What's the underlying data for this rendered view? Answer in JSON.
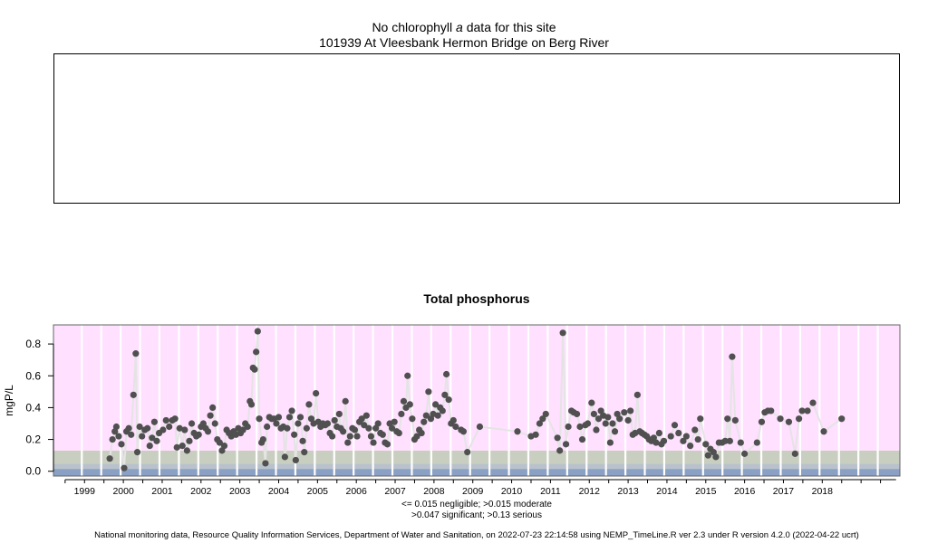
{
  "header": {
    "title_pre": "No chlorophyll ",
    "title_italic": "a",
    "title_post": " data for this site",
    "site": "101939 At Vleesbank Hermon Bridge on Berg River"
  },
  "legend": {
    "line1": "<= 0.015 negligible; >0.015 moderate",
    "line2": ">0.047 significant; >0.13 serious"
  },
  "footer": "National monitoring data, Resource Quality Information Services, Department of Water and Sanitation, on 2022-07-23 22:14:58 using NEMP_TimeLine.R ver 2.3 under R version 4.2.0 (2022-04-22 ucrt)",
  "colors": {
    "serious": "#ffe0ff",
    "significant": "#c9cfc0",
    "moderate": "#b9c2cc",
    "negligible": "#8aa0c4",
    "points": "#505050",
    "line": "#e4e4e4"
  },
  "chart_data": {
    "type": "scatter",
    "title": "Total phosphorus",
    "xlabel": "",
    "ylabel": "mgP/L",
    "xlim": [
      1998.2,
      2020.0
    ],
    "ylim": [
      -0.03,
      0.92
    ],
    "yticks": [
      0.0,
      0.2,
      0.4,
      0.6,
      0.8
    ],
    "ytick_labels": [
      "0.0",
      "0.2",
      "0.4",
      "0.6",
      "0.8"
    ],
    "xticks": [
      1999,
      2000,
      2001,
      2002,
      2003,
      2004,
      2005,
      2006,
      2007,
      2008,
      2009,
      2010,
      2011,
      2012,
      2013,
      2014,
      2015,
      2016,
      2017,
      2018
    ],
    "xtick_labels": [
      "1999",
      "2000",
      "2001",
      "2002",
      "2003",
      "2004",
      "2005",
      "2006",
      "2007",
      "2008",
      "2009",
      "2010",
      "2011",
      "2012",
      "2013",
      "2014",
      "2015",
      "2016",
      "2017",
      "2018"
    ],
    "bands": [
      {
        "name": "negligible",
        "from": -0.03,
        "to": 0.015
      },
      {
        "name": "moderate",
        "from": 0.015,
        "to": 0.047
      },
      {
        "name": "significant",
        "from": 0.047,
        "to": 0.13
      },
      {
        "name": "serious",
        "from": 0.13,
        "to": 0.92
      }
    ],
    "points": [
      [
        1999.65,
        0.08
      ],
      [
        1999.72,
        0.2
      ],
      [
        1999.78,
        0.25
      ],
      [
        1999.82,
        0.28
      ],
      [
        1999.88,
        0.22
      ],
      [
        1999.95,
        0.17
      ],
      [
        2000.02,
        0.02
      ],
      [
        2000.08,
        0.25
      ],
      [
        2000.14,
        0.27
      ],
      [
        2000.2,
        0.23
      ],
      [
        2000.26,
        0.48
      ],
      [
        2000.32,
        0.74
      ],
      [
        2000.36,
        0.12
      ],
      [
        2000.42,
        0.28
      ],
      [
        2000.48,
        0.22
      ],
      [
        2000.55,
        0.26
      ],
      [
        2000.62,
        0.27
      ],
      [
        2000.68,
        0.16
      ],
      [
        2000.74,
        0.21
      ],
      [
        2000.8,
        0.31
      ],
      [
        2000.86,
        0.19
      ],
      [
        2000.92,
        0.24
      ],
      [
        2001.02,
        0.26
      ],
      [
        2001.1,
        0.32
      ],
      [
        2001.18,
        0.28
      ],
      [
        2001.26,
        0.32
      ],
      [
        2001.33,
        0.33
      ],
      [
        2001.38,
        0.15
      ],
      [
        2001.45,
        0.27
      ],
      [
        2001.52,
        0.16
      ],
      [
        2001.58,
        0.26
      ],
      [
        2001.64,
        0.13
      ],
      [
        2001.7,
        0.19
      ],
      [
        2001.76,
        0.3
      ],
      [
        2001.82,
        0.24
      ],
      [
        2001.88,
        0.22
      ],
      [
        2001.94,
        0.23
      ],
      [
        2002.0,
        0.28
      ],
      [
        2002.06,
        0.3
      ],
      [
        2002.12,
        0.27
      ],
      [
        2002.18,
        0.25
      ],
      [
        2002.24,
        0.35
      ],
      [
        2002.3,
        0.4
      ],
      [
        2002.36,
        0.3
      ],
      [
        2002.42,
        0.2
      ],
      [
        2002.48,
        0.18
      ],
      [
        2002.54,
        0.13
      ],
      [
        2002.6,
        0.16
      ],
      [
        2002.66,
        0.26
      ],
      [
        2002.72,
        0.24
      ],
      [
        2002.78,
        0.22
      ],
      [
        2002.84,
        0.25
      ],
      [
        2002.9,
        0.23
      ],
      [
        2002.96,
        0.27
      ],
      [
        2003.02,
        0.24
      ],
      [
        2003.08,
        0.26
      ],
      [
        2003.14,
        0.3
      ],
      [
        2003.2,
        0.28
      ],
      [
        2003.26,
        0.44
      ],
      [
        2003.3,
        0.42
      ],
      [
        2003.34,
        0.65
      ],
      [
        2003.38,
        0.64
      ],
      [
        2003.42,
        0.75
      ],
      [
        2003.46,
        0.88
      ],
      [
        2003.5,
        0.33
      ],
      [
        2003.56,
        0.18
      ],
      [
        2003.6,
        0.2
      ],
      [
        2003.66,
        0.05
      ],
      [
        2003.7,
        0.28
      ],
      [
        2003.76,
        0.34
      ],
      [
        2003.82,
        0.33
      ],
      [
        2003.88,
        0.33
      ],
      [
        2003.94,
        0.3
      ],
      [
        2004.0,
        0.34
      ],
      [
        2004.06,
        0.27
      ],
      [
        2004.12,
        0.28
      ],
      [
        2004.16,
        0.09
      ],
      [
        2004.22,
        0.27
      ],
      [
        2004.28,
        0.34
      ],
      [
        2004.34,
        0.38
      ],
      [
        2004.4,
        0.23
      ],
      [
        2004.44,
        0.07
      ],
      [
        2004.5,
        0.3
      ],
      [
        2004.56,
        0.34
      ],
      [
        2004.62,
        0.19
      ],
      [
        2004.66,
        0.12
      ],
      [
        2004.72,
        0.27
      ],
      [
        2004.78,
        0.42
      ],
      [
        2004.84,
        0.33
      ],
      [
        2004.9,
        0.3
      ],
      [
        2004.96,
        0.49
      ],
      [
        2005.02,
        0.31
      ],
      [
        2005.08,
        0.28
      ],
      [
        2005.14,
        0.3
      ],
      [
        2005.2,
        0.29
      ],
      [
        2005.26,
        0.3
      ],
      [
        2005.32,
        0.24
      ],
      [
        2005.38,
        0.22
      ],
      [
        2005.44,
        0.32
      ],
      [
        2005.5,
        0.28
      ],
      [
        2005.56,
        0.36
      ],
      [
        2005.6,
        0.27
      ],
      [
        2005.66,
        0.25
      ],
      [
        2005.72,
        0.44
      ],
      [
        2005.78,
        0.18
      ],
      [
        2005.84,
        0.22
      ],
      [
        2005.9,
        0.27
      ],
      [
        2005.96,
        0.26
      ],
      [
        2006.02,
        0.22
      ],
      [
        2006.08,
        0.31
      ],
      [
        2006.14,
        0.33
      ],
      [
        2006.2,
        0.29
      ],
      [
        2006.26,
        0.35
      ],
      [
        2006.32,
        0.27
      ],
      [
        2006.38,
        0.22
      ],
      [
        2006.44,
        0.18
      ],
      [
        2006.5,
        0.27
      ],
      [
        2006.56,
        0.3
      ],
      [
        2006.62,
        0.24
      ],
      [
        2006.68,
        0.23
      ],
      [
        2006.74,
        0.18
      ],
      [
        2006.8,
        0.17
      ],
      [
        2006.86,
        0.3
      ],
      [
        2006.92,
        0.27
      ],
      [
        2006.98,
        0.31
      ],
      [
        2007.04,
        0.25
      ],
      [
        2007.1,
        0.24
      ],
      [
        2007.16,
        0.36
      ],
      [
        2007.22,
        0.44
      ],
      [
        2007.28,
        0.4
      ],
      [
        2007.32,
        0.6
      ],
      [
        2007.38,
        0.42
      ],
      [
        2007.44,
        0.33
      ],
      [
        2007.5,
        0.2
      ],
      [
        2007.56,
        0.22
      ],
      [
        2007.62,
        0.26
      ],
      [
        2007.68,
        0.24
      ],
      [
        2007.74,
        0.31
      ],
      [
        2007.8,
        0.35
      ],
      [
        2007.86,
        0.5
      ],
      [
        2007.92,
        0.33
      ],
      [
        2007.98,
        0.36
      ],
      [
        2008.04,
        0.42
      ],
      [
        2008.1,
        0.35
      ],
      [
        2008.16,
        0.4
      ],
      [
        2008.22,
        0.38
      ],
      [
        2008.28,
        0.48
      ],
      [
        2008.32,
        0.61
      ],
      [
        2008.38,
        0.45
      ],
      [
        2008.44,
        0.3
      ],
      [
        2008.5,
        0.32
      ],
      [
        2008.56,
        0.28
      ],
      [
        2008.7,
        0.26
      ],
      [
        2008.76,
        0.25
      ],
      [
        2008.86,
        0.12
      ],
      [
        2009.18,
        0.28
      ],
      [
        2010.15,
        0.25
      ],
      [
        2010.5,
        0.22
      ],
      [
        2010.62,
        0.23
      ],
      [
        2010.72,
        0.3
      ],
      [
        2010.8,
        0.33
      ],
      [
        2010.88,
        0.36
      ],
      [
        2011.18,
        0.21
      ],
      [
        2011.24,
        0.13
      ],
      [
        2011.32,
        0.87
      ],
      [
        2011.4,
        0.17
      ],
      [
        2011.46,
        0.28
      ],
      [
        2011.54,
        0.38
      ],
      [
        2011.6,
        0.37
      ],
      [
        2011.68,
        0.36
      ],
      [
        2011.76,
        0.28
      ],
      [
        2011.82,
        0.2
      ],
      [
        2011.9,
        0.29
      ],
      [
        2011.96,
        0.3
      ],
      [
        2012.06,
        0.43
      ],
      [
        2012.12,
        0.36
      ],
      [
        2012.18,
        0.26
      ],
      [
        2012.24,
        0.33
      ],
      [
        2012.3,
        0.38
      ],
      [
        2012.36,
        0.35
      ],
      [
        2012.42,
        0.3
      ],
      [
        2012.48,
        0.34
      ],
      [
        2012.54,
        0.18
      ],
      [
        2012.6,
        0.3
      ],
      [
        2012.66,
        0.25
      ],
      [
        2012.72,
        0.36
      ],
      [
        2012.78,
        0.33
      ],
      [
        2012.9,
        0.37
      ],
      [
        2013.0,
        0.32
      ],
      [
        2013.06,
        0.38
      ],
      [
        2013.12,
        0.23
      ],
      [
        2013.18,
        0.24
      ],
      [
        2013.24,
        0.48
      ],
      [
        2013.3,
        0.25
      ],
      [
        2013.36,
        0.24
      ],
      [
        2013.42,
        0.23
      ],
      [
        2013.48,
        0.22
      ],
      [
        2013.54,
        0.2
      ],
      [
        2013.6,
        0.19
      ],
      [
        2013.66,
        0.21
      ],
      [
        2013.72,
        0.18
      ],
      [
        2013.8,
        0.24
      ],
      [
        2013.86,
        0.17
      ],
      [
        2013.92,
        0.19
      ],
      [
        2014.1,
        0.22
      ],
      [
        2014.2,
        0.29
      ],
      [
        2014.3,
        0.24
      ],
      [
        2014.42,
        0.19
      ],
      [
        2014.5,
        0.22
      ],
      [
        2014.6,
        0.16
      ],
      [
        2014.72,
        0.26
      ],
      [
        2014.8,
        0.2
      ],
      [
        2014.86,
        0.33
      ],
      [
        2015.0,
        0.17
      ],
      [
        2015.06,
        0.1
      ],
      [
        2015.12,
        0.14
      ],
      [
        2015.2,
        0.12
      ],
      [
        2015.26,
        0.09
      ],
      [
        2015.34,
        0.18
      ],
      [
        2015.42,
        0.18
      ],
      [
        2015.5,
        0.19
      ],
      [
        2015.56,
        0.33
      ],
      [
        2015.62,
        0.19
      ],
      [
        2015.68,
        0.72
      ],
      [
        2015.76,
        0.32
      ],
      [
        2015.9,
        0.18
      ],
      [
        2016.0,
        0.11
      ],
      [
        2016.32,
        0.18
      ],
      [
        2016.44,
        0.31
      ],
      [
        2016.52,
        0.37
      ],
      [
        2016.6,
        0.38
      ],
      [
        2016.68,
        0.38
      ],
      [
        2016.92,
        0.33
      ],
      [
        2017.14,
        0.31
      ],
      [
        2017.3,
        0.11
      ],
      [
        2017.4,
        0.33
      ],
      [
        2017.48,
        0.38
      ],
      [
        2017.62,
        0.38
      ],
      [
        2017.76,
        0.43
      ],
      [
        2018.04,
        0.25
      ],
      [
        2018.5,
        0.33
      ]
    ]
  }
}
